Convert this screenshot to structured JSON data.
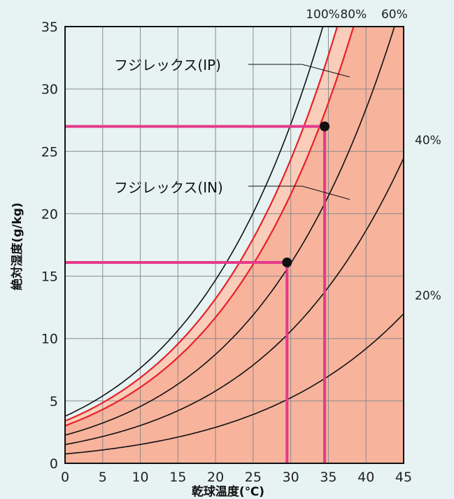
{
  "chart_data": {
    "type": "line",
    "title": "",
    "xlabel": "乾球温度(℃)",
    "ylabel": "絶対湿度(g/kg)",
    "xlim": [
      0,
      45
    ],
    "ylim": [
      0,
      35
    ],
    "x_ticks": [
      "0",
      "5",
      "10",
      "15",
      "20",
      "25",
      "30",
      "35",
      "40",
      "45"
    ],
    "y_ticks": [
      "0",
      "5",
      "10",
      "15",
      "20",
      "25",
      "30",
      "35"
    ],
    "grid": true,
    "rh_curve_labels": [
      {
        "label": "100%",
        "rh": 100
      },
      {
        "label": "80%",
        "rh": 80
      },
      {
        "label": "60%",
        "rh": 60
      },
      {
        "label": "40%",
        "rh": 40
      },
      {
        "label": "20%",
        "rh": 20
      }
    ],
    "rh_curves_plotted": [
      100,
      90,
      80,
      60,
      40,
      20
    ],
    "regions": [
      {
        "name": "フジレックス(IP)",
        "upper_rh": 90,
        "lower_rh": 80,
        "color": "#f9cdb9"
      },
      {
        "name": "フジレックス(IN)",
        "upper_rh": 80,
        "lower_rh": 0,
        "color": "#f7b39c"
      }
    ],
    "boundary_color": "#e8202a",
    "points": [
      {
        "x": 34.5,
        "y": 27.0
      },
      {
        "x": 29.5,
        "y": 16.1
      }
    ],
    "marker_line_color": "#e6398c",
    "annotations": [
      "フジレックス(IP)",
      "フジレックス(IN)"
    ]
  }
}
